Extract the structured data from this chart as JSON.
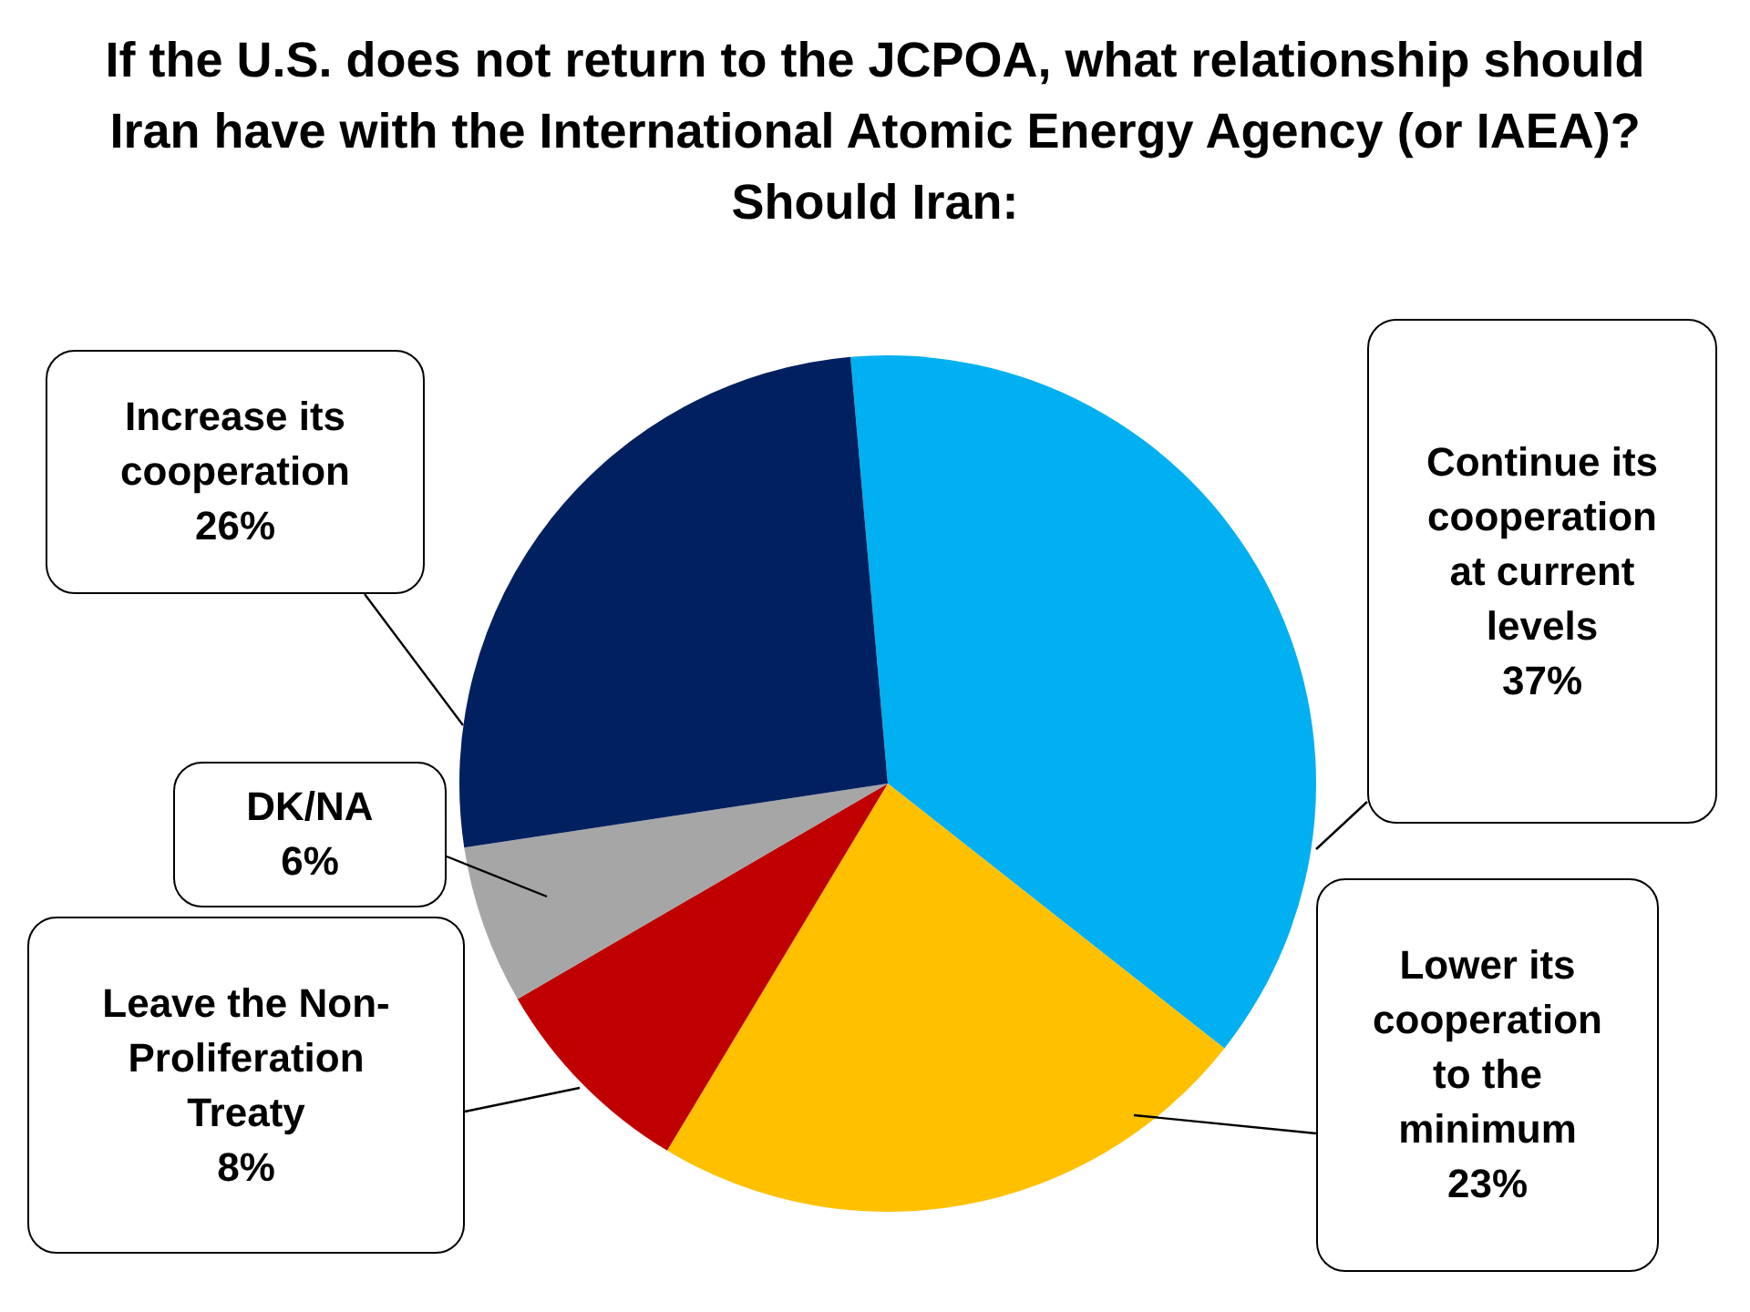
{
  "chart_data": {
    "type": "pie",
    "title": "If the U.S. does not return to the JCPOA, what relationship should Iran have with the International Atomic Energy Agency (or IAEA)?  Should Iran:",
    "categories": [
      "Continue its cooperation at current levels",
      "Lower its cooperation to the minimum",
      "Leave the Non-Proliferation Treaty",
      "DK/NA",
      "Increase its cooperation"
    ],
    "values": [
      37,
      23,
      8,
      6,
      26
    ],
    "colors": [
      "#00b0f0",
      "#ffc000",
      "#c00000",
      "#a6a6a6",
      "#002060"
    ],
    "value_labels": [
      "37%",
      "23%",
      "8%",
      "6%",
      "26%"
    ],
    "legend": false
  }
}
